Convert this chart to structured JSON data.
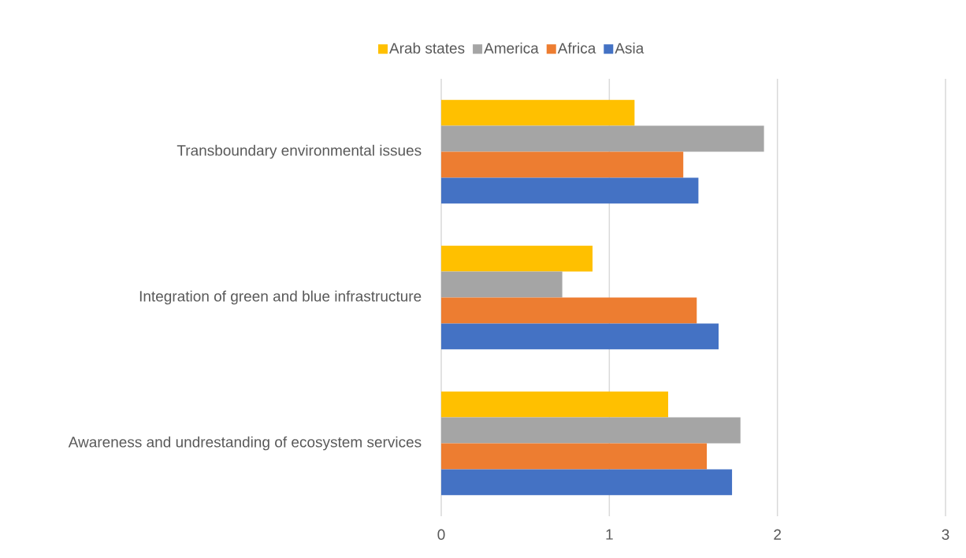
{
  "chart_data": {
    "type": "bar",
    "orientation": "horizontal",
    "categories": [
      "Transboundary environmental issues",
      "Integration of green and blue infrastructure",
      "Awareness and undrestanding of ecosystem services"
    ],
    "series": [
      {
        "name": "Arab states",
        "color": "#ffc000",
        "values": [
          1.15,
          0.9,
          1.35
        ]
      },
      {
        "name": "America",
        "color": "#a5a5a5",
        "values": [
          1.92,
          0.72,
          1.78
        ]
      },
      {
        "name": "Africa",
        "color": "#ed7d31",
        "values": [
          1.44,
          1.52,
          1.58
        ]
      },
      {
        "name": "Asia",
        "color": "#4472c4",
        "values": [
          1.53,
          1.65,
          1.73
        ]
      }
    ],
    "xlim": [
      0,
      3
    ],
    "xticks": [
      0,
      1,
      2,
      3
    ],
    "grid": "x",
    "legend": "top"
  }
}
